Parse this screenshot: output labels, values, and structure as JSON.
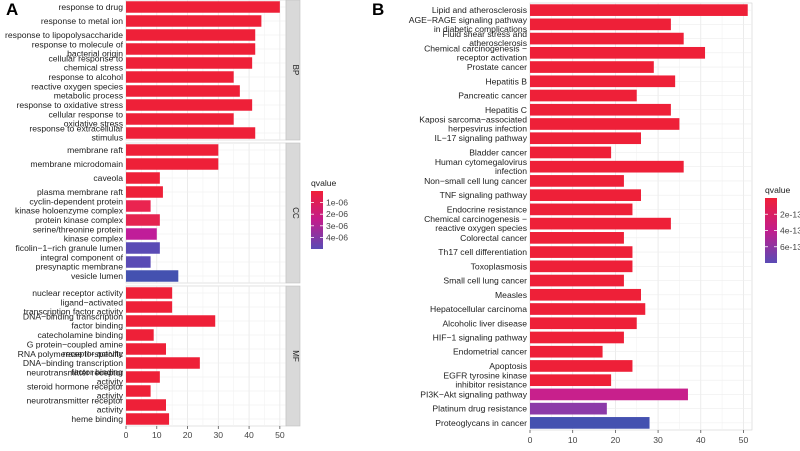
{
  "figure": {
    "panel_a_letter": "A",
    "panel_b_letter": "B"
  },
  "chart_data": [
    {
      "panel": "A",
      "type": "bar",
      "orientation": "horizontal",
      "xlim": [
        0,
        52
      ],
      "xticks": [
        0,
        10,
        20,
        30,
        40,
        50
      ],
      "legend": {
        "title": "qvalue",
        "ticks": [
          "1e-06",
          "2e-06",
          "3e-06",
          "4e-06"
        ],
        "colors": [
          "#f01f38",
          "#c21d8c",
          "#5a4bb5"
        ]
      },
      "groups": [
        {
          "name": "BP",
          "items": [
            {
              "label": [
                "response to drug"
              ],
              "value": 50,
              "color": "#ee2038"
            },
            {
              "label": [
                "response to metal ion"
              ],
              "value": 44,
              "color": "#ee2038"
            },
            {
              "label": [
                "response to lipopolysaccharide"
              ],
              "value": 42,
              "color": "#ee2038"
            },
            {
              "label": [
                "response to molecule of",
                "bacterial origin"
              ],
              "value": 42,
              "color": "#ee2038"
            },
            {
              "label": [
                "cellular response to",
                "chemical stress"
              ],
              "value": 41,
              "color": "#ee2038"
            },
            {
              "label": [
                "response to alcohol"
              ],
              "value": 35,
              "color": "#ee2038"
            },
            {
              "label": [
                "reactive oxygen species",
                "metabolic process"
              ],
              "value": 37,
              "color": "#ee2038"
            },
            {
              "label": [
                "response to oxidative stress"
              ],
              "value": 41,
              "color": "#ee2038"
            },
            {
              "label": [
                "cellular response to",
                "oxidative stress"
              ],
              "value": 35,
              "color": "#ee2038"
            },
            {
              "label": [
                "response to extracellular",
                "stimulus"
              ],
              "value": 42,
              "color": "#ee2038"
            }
          ]
        },
        {
          "name": "CC",
          "items": [
            {
              "label": [
                "membrane raft"
              ],
              "value": 30,
              "color": "#ee2038"
            },
            {
              "label": [
                "membrane microdomain"
              ],
              "value": 30,
              "color": "#ee2038"
            },
            {
              "label": [
                "caveola"
              ],
              "value": 11,
              "color": "#ee2038"
            },
            {
              "label": [
                "plasma membrane raft"
              ],
              "value": 12,
              "color": "#ee2038"
            },
            {
              "label": [
                "cyclin-dependent protein",
                "kinase holoenzyme complex"
              ],
              "value": 8,
              "color": "#ea2450"
            },
            {
              "label": [
                "protein kinase complex"
              ],
              "value": 11,
              "color": "#e52450"
            },
            {
              "label": [
                "serine/threonine protein",
                "kinase complex"
              ],
              "value": 10,
              "color": "#c01d99"
            },
            {
              "label": [
                "ficolin−1−rich granule lumen"
              ],
              "value": 11,
              "color": "#5a4bb5"
            },
            {
              "label": [
                "integral component of",
                "presynaptic membrane"
              ],
              "value": 8,
              "color": "#5a4bb5"
            },
            {
              "label": [
                "vesicle lumen"
              ],
              "value": 17,
              "color": "#4451b0"
            }
          ]
        },
        {
          "name": "MF",
          "items": [
            {
              "label": [
                "nuclear receptor activity"
              ],
              "value": 15,
              "color": "#ee2038"
            },
            {
              "label": [
                "ligand−activated",
                "transcription factor activity"
              ],
              "value": 15,
              "color": "#ee2038"
            },
            {
              "label": [
                "DNA−binding transcription",
                "factor binding"
              ],
              "value": 29,
              "color": "#ee2038"
            },
            {
              "label": [
                "catecholamine binding"
              ],
              "value": 9,
              "color": "#ee2038"
            },
            {
              "label": [
                "G protein−coupled amine",
                "receptor activity"
              ],
              "value": 13,
              "color": "#ee2038"
            },
            {
              "label": [
                "RNA polymerase II−specific",
                "DNA−binding transcription",
                "factor binding"
              ],
              "value": 24,
              "color": "#ee2038"
            },
            {
              "label": [
                "neurotransmitter receptor",
                "activity"
              ],
              "value": 11,
              "color": "#ee2038"
            },
            {
              "label": [
                "steroid hormone receptor",
                "activity"
              ],
              "value": 8,
              "color": "#ee2038"
            },
            {
              "label": [
                "neurotransmitter receptor",
                "activity"
              ],
              "value": 13,
              "color": "#ee2038"
            },
            {
              "label": [
                "heme binding"
              ],
              "value": 14,
              "color": "#ee2038"
            }
          ]
        }
      ]
    },
    {
      "panel": "B",
      "type": "bar",
      "orientation": "horizontal",
      "xlim": [
        0,
        52
      ],
      "xticks": [
        0,
        10,
        20,
        30,
        40,
        50
      ],
      "legend": {
        "title": "qvalue",
        "ticks": [
          "2e-13",
          "4e-13",
          "6e-13"
        ],
        "colors": [
          "#f01f38",
          "#c21d8c",
          "#5a4bb5"
        ]
      },
      "items": [
        {
          "label": [
            "Lipid and atherosclerosis"
          ],
          "value": 51,
          "color": "#ee2038"
        },
        {
          "label": [
            "AGE−RAGE signaling pathway",
            "in diabetic complications"
          ],
          "value": 33,
          "color": "#ee2038"
        },
        {
          "label": [
            "Fluid shear stress and",
            "atherosclerosis"
          ],
          "value": 36,
          "color": "#ee2038"
        },
        {
          "label": [
            "Chemical carcinogenesis −",
            "receptor activation"
          ],
          "value": 41,
          "color": "#ee2038"
        },
        {
          "label": [
            "Prostate cancer"
          ],
          "value": 29,
          "color": "#ee2038"
        },
        {
          "label": [
            "Hepatitis B"
          ],
          "value": 34,
          "color": "#ee2038"
        },
        {
          "label": [
            "Pancreatic cancer"
          ],
          "value": 25,
          "color": "#ee2038"
        },
        {
          "label": [
            "Hepatitis C"
          ],
          "value": 33,
          "color": "#ee2038"
        },
        {
          "label": [
            "Kaposi sarcoma−associated",
            "herpesvirus infection"
          ],
          "value": 35,
          "color": "#ee2038"
        },
        {
          "label": [
            "IL−17 signaling pathway"
          ],
          "value": 26,
          "color": "#ee2038"
        },
        {
          "label": [
            "Bladder cancer"
          ],
          "value": 19,
          "color": "#ee2038"
        },
        {
          "label": [
            "Human cytomegalovirus",
            "infection"
          ],
          "value": 36,
          "color": "#ee2038"
        },
        {
          "label": [
            "Non−small cell lung cancer"
          ],
          "value": 22,
          "color": "#ee2038"
        },
        {
          "label": [
            "TNF signaling pathway"
          ],
          "value": 26,
          "color": "#ee2038"
        },
        {
          "label": [
            "Endocrine resistance"
          ],
          "value": 24,
          "color": "#ee2038"
        },
        {
          "label": [
            "Chemical carcinogenesis −",
            "reactive oxygen species"
          ],
          "value": 33,
          "color": "#ee2038"
        },
        {
          "label": [
            "Colorectal cancer"
          ],
          "value": 22,
          "color": "#ee2038"
        },
        {
          "label": [
            "Th17 cell differentiation"
          ],
          "value": 24,
          "color": "#ee2038"
        },
        {
          "label": [
            "Toxoplasmosis"
          ],
          "value": 24,
          "color": "#ee2038"
        },
        {
          "label": [
            "Small cell lung cancer"
          ],
          "value": 22,
          "color": "#ee2038"
        },
        {
          "label": [
            "Measles"
          ],
          "value": 26,
          "color": "#ee2038"
        },
        {
          "label": [
            "Hepatocellular carcinoma"
          ],
          "value": 27,
          "color": "#ee2038"
        },
        {
          "label": [
            "Alcoholic liver disease"
          ],
          "value": 25,
          "color": "#ee2038"
        },
        {
          "label": [
            "HIF−1 signaling pathway"
          ],
          "value": 22,
          "color": "#ee2038"
        },
        {
          "label": [
            "Endometrial cancer"
          ],
          "value": 17,
          "color": "#ee2038"
        },
        {
          "label": [
            "Apoptosis"
          ],
          "value": 24,
          "color": "#ee2038"
        },
        {
          "label": [
            "EGFR tyrosine kinase",
            "inhibitor resistance"
          ],
          "value": 19,
          "color": "#ee2038"
        },
        {
          "label": [
            "PI3K−Akt signaling pathway"
          ],
          "value": 37,
          "color": "#c8208c"
        },
        {
          "label": [
            "Platinum drug resistance"
          ],
          "value": 18,
          "color": "#8c3aa8"
        },
        {
          "label": [
            "Proteoglycans in cancer"
          ],
          "value": 28,
          "color": "#4451b0"
        }
      ]
    }
  ]
}
